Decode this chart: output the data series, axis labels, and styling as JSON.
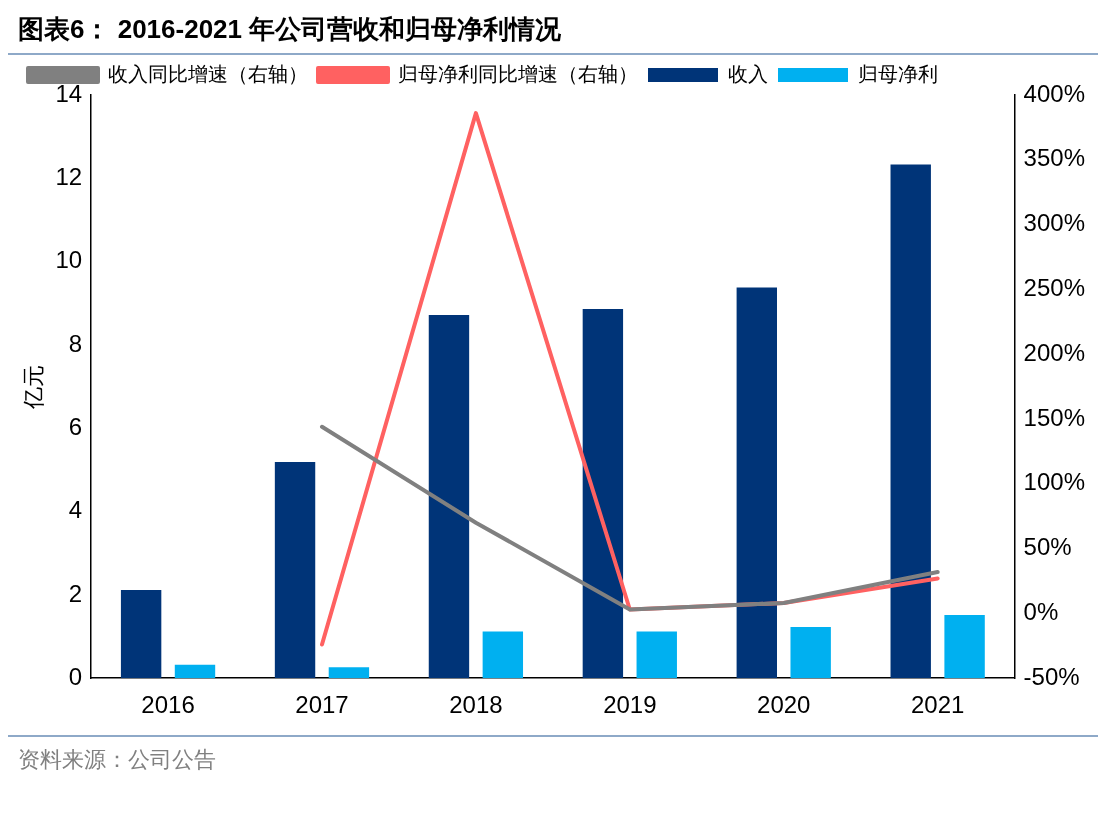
{
  "chart_data": {
    "type": "bar",
    "title": "图表6： 2016-2021 年公司营收和归母净利情况",
    "ylabel": "亿元",
    "categories": [
      "2016",
      "2017",
      "2018",
      "2019",
      "2020",
      "2021"
    ],
    "series": [
      {
        "name": "收入",
        "color": "#003478",
        "values": [
          2.12,
          5.19,
          8.72,
          8.86,
          9.38,
          12.33
        ]
      },
      {
        "name": "归母净利",
        "color": "#00b0f0",
        "values": [
          0.32,
          0.26,
          1.12,
          1.12,
          1.23,
          1.52
        ]
      },
      {
        "name": "收入同比增速（右轴）",
        "type": "line",
        "axis": "y2",
        "color": "#808080",
        "values": [
          null,
          144,
          70,
          3,
          8,
          32
        ]
      },
      {
        "name": "归母净利同比增速（右轴）",
        "type": "line",
        "axis": "y2",
        "color": "#ff6161",
        "values": [
          null,
          -24,
          386,
          3,
          8,
          27
        ]
      }
    ],
    "ylim": [
      0,
      14
    ],
    "yticks": [
      0,
      2,
      4,
      6,
      8,
      10,
      12,
      14
    ],
    "y2lim": [
      -50,
      400
    ],
    "y2ticks": [
      {
        "value": -50,
        "label": "-50%"
      },
      {
        "value": 0,
        "label": "0%"
      },
      {
        "value": 50,
        "label": "50%"
      },
      {
        "value": 100,
        "label": "100%"
      },
      {
        "value": 150,
        "label": "150%"
      },
      {
        "value": 200,
        "label": "200%"
      },
      {
        "value": 250,
        "label": "250%"
      },
      {
        "value": 300,
        "label": "300%"
      },
      {
        "value": 350,
        "label": "350%"
      },
      {
        "value": 400,
        "label": "400%"
      }
    ],
    "legend": "top",
    "grid": false,
    "marker": "none",
    "line_style": "solid",
    "annotations": [
      "资料来源：公司公告"
    ]
  }
}
